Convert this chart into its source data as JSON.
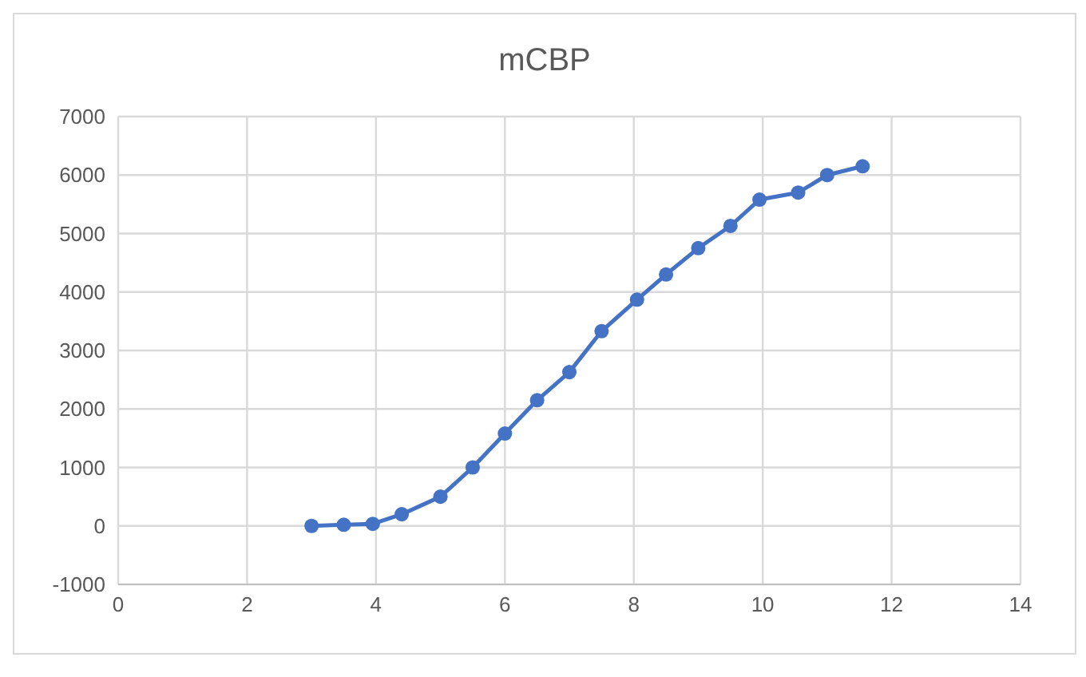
{
  "chart_data": {
    "type": "line",
    "title": "mCBP",
    "x": [
      3,
      3.5,
      3.95,
      4.4,
      5,
      5.5,
      6,
      6.5,
      7,
      7.5,
      8.05,
      8.5,
      9,
      9.5,
      9.95,
      10.55,
      11,
      11.55
    ],
    "series": [
      {
        "color": "#4472c4",
        "values": [
          0,
          20,
          35,
          200,
          500,
          1000,
          1580,
          2150,
          2630,
          3330,
          3870,
          4300,
          4750,
          5130,
          5580,
          5700,
          6000,
          6150
        ]
      }
    ],
    "xlim": [
      0,
      14
    ],
    "xticks": [
      0,
      2,
      4,
      6,
      8,
      10,
      12,
      14
    ],
    "ylim": [
      -1000,
      7000
    ],
    "yticks": [
      -1000,
      0,
      1000,
      2000,
      3000,
      4000,
      5000,
      6000,
      7000
    ],
    "grid": true,
    "marker": "circle",
    "line_style": "solid"
  }
}
